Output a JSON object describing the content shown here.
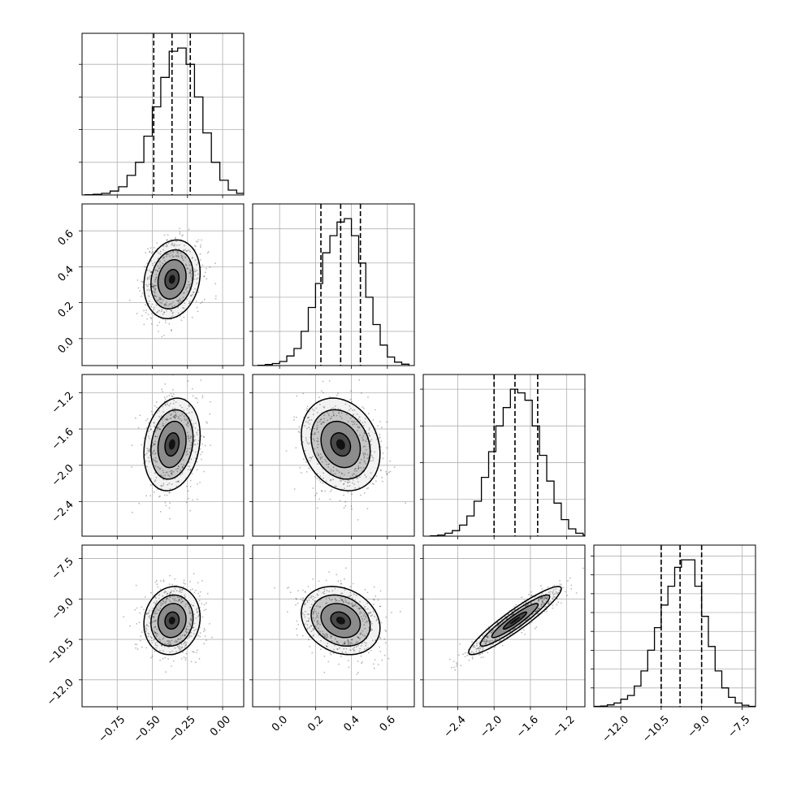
{
  "chart_data": {
    "type": "corner",
    "grid": true,
    "parameters": [
      {
        "range": [
          -1.0,
          0.15
        ],
        "ticks": [
          -0.75,
          -0.5,
          -0.25,
          0.0
        ],
        "tick_labels": [
          "−0.75",
          "−0.50",
          "−0.25",
          "0.00"
        ],
        "quantiles": [
          -0.49,
          -0.36,
          -0.23
        ]
      },
      {
        "range": [
          -0.15,
          0.75
        ],
        "ticks": [
          0.0,
          0.2,
          0.4,
          0.6
        ],
        "tick_labels": [
          "0.0",
          "0.2",
          "0.4",
          "0.6"
        ],
        "quantiles": [
          0.23,
          0.34,
          0.45
        ]
      },
      {
        "range": [
          -2.78,
          -1.0
        ],
        "ticks": [
          -2.4,
          -2.0,
          -1.6,
          -1.2
        ],
        "tick_labels": [
          "−2.4",
          "−2.0",
          "−1.6",
          "−1.2"
        ],
        "quantiles": [
          -2.0,
          -1.77,
          -1.52
        ]
      },
      {
        "range": [
          -13.0,
          -7.0
        ],
        "ticks": [
          -12.0,
          -10.5,
          -9.0,
          -7.5
        ],
        "tick_labels": [
          "−12.0",
          "−10.5",
          "−9.0",
          "−7.5"
        ],
        "quantiles": [
          -10.5,
          -9.8,
          -9.0
        ]
      }
    ],
    "histograms": [
      {
        "bins": [
          -0.98,
          -0.92,
          -0.86,
          -0.8,
          -0.74,
          -0.68,
          -0.62,
          -0.56,
          -0.5,
          -0.44,
          -0.38,
          -0.32,
          -0.26,
          -0.2,
          -0.14,
          -0.08,
          -0.02,
          0.04,
          0.1
        ],
        "counts": [
          1,
          2,
          5,
          12,
          25,
          60,
          100,
          180,
          270,
          360,
          440,
          450,
          400,
          300,
          190,
          100,
          45,
          15,
          5
        ]
      },
      {
        "bins": [
          -0.12,
          -0.08,
          -0.04,
          0.0,
          0.04,
          0.08,
          0.12,
          0.16,
          0.2,
          0.24,
          0.28,
          0.32,
          0.36,
          0.4,
          0.44,
          0.48,
          0.52,
          0.56,
          0.6,
          0.64,
          0.68
        ],
        "counts": [
          1,
          3,
          6,
          12,
          28,
          50,
          100,
          170,
          240,
          330,
          380,
          420,
          430,
          380,
          300,
          200,
          120,
          60,
          25,
          10,
          4
        ]
      },
      {
        "bins": [
          -2.7,
          -2.62,
          -2.54,
          -2.46,
          -2.38,
          -2.3,
          -2.22,
          -2.14,
          -2.06,
          -1.98,
          -1.9,
          -1.82,
          -1.74,
          -1.66,
          -1.58,
          -1.5,
          -1.42,
          -1.34,
          -1.26,
          -1.18,
          -1.1,
          -1.02
        ],
        "counts": [
          1,
          3,
          8,
          15,
          30,
          55,
          95,
          160,
          230,
          300,
          350,
          400,
          390,
          370,
          300,
          220,
          150,
          90,
          45,
          20,
          8,
          3
        ]
      },
      {
        "bins": [
          -13.0,
          -12.75,
          -12.5,
          -12.25,
          -12.0,
          -11.75,
          -11.5,
          -11.25,
          -11.0,
          -10.75,
          -10.5,
          -10.25,
          -10.0,
          -9.75,
          -9.5,
          -9.25,
          -9.0,
          -8.75,
          -8.5,
          -8.25,
          -8.0,
          -7.75,
          -7.5,
          -7.25
        ],
        "counts": [
          1,
          2,
          5,
          10,
          20,
          30,
          55,
          95,
          150,
          210,
          270,
          320,
          370,
          390,
          390,
          320,
          240,
          160,
          95,
          50,
          25,
          10,
          4,
          1
        ]
      }
    ],
    "pairs": [
      {
        "x": 0,
        "y": 1,
        "center": [
          -0.36,
          0.33
        ],
        "cov": [
          [
            0.01,
            0.0018
          ],
          [
            0.0018,
            0.012
          ]
        ]
      },
      {
        "x": 0,
        "y": 2,
        "center": [
          -0.36,
          -1.77
        ],
        "cov": [
          [
            0.01,
            0.0048
          ],
          [
            0.0048,
            0.065
          ]
        ]
      },
      {
        "x": 1,
        "y": 2,
        "center": [
          0.34,
          -1.77
        ],
        "cov": [
          [
            0.012,
            -0.0056
          ],
          [
            -0.0056,
            0.065
          ]
        ]
      },
      {
        "x": 0,
        "y": 3,
        "center": [
          -0.36,
          -9.8
        ],
        "cov": [
          [
            0.01,
            0.006
          ],
          [
            0.006,
            0.4
          ]
        ]
      },
      {
        "x": 1,
        "y": 3,
        "center": [
          0.34,
          -9.8
        ],
        "cov": [
          [
            0.012,
            -0.015
          ],
          [
            -0.015,
            0.4
          ]
        ]
      },
      {
        "x": 2,
        "y": 3,
        "center": [
          -1.77,
          -9.8
        ],
        "cov": [
          [
            0.065,
            0.15
          ],
          [
            0.15,
            0.4
          ]
        ]
      }
    ],
    "contour_levels": [
      0.118,
      0.393,
      0.675,
      0.865
    ]
  }
}
